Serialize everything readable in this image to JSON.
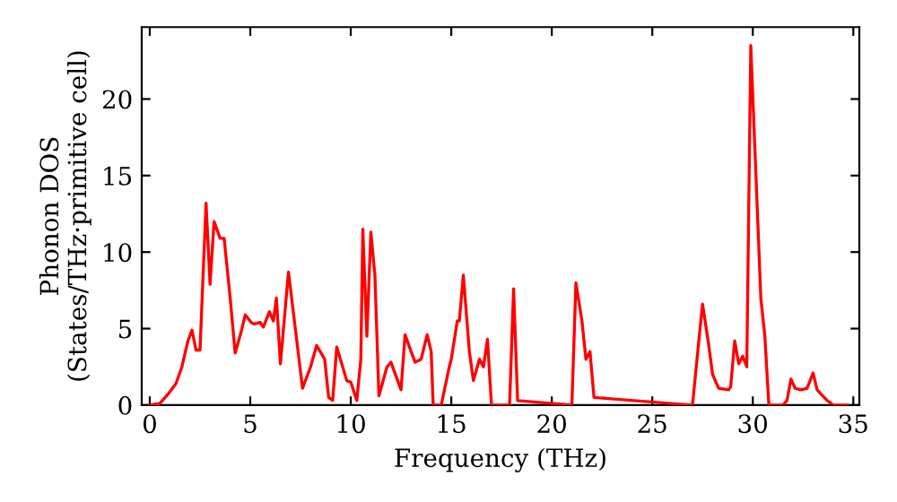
{
  "chart_data": {
    "type": "line",
    "xlabel": "Frequency (THz)",
    "ylabel": "Phonon DOS\n(States/THz·primitive cell)",
    "xlim": [
      -0.4,
      35.3
    ],
    "ylim": [
      0,
      24.7
    ],
    "xticks": [
      0,
      5,
      10,
      15,
      20,
      25,
      30,
      35
    ],
    "yticks": [
      0,
      5,
      10,
      15,
      20
    ],
    "grid": false,
    "marker": "none",
    "line_style": "solid",
    "series": [
      {
        "color": "#ff0000",
        "x": [
          0,
          0.5,
          0.9,
          1.3,
          1.6,
          1.9,
          2.1,
          2.3,
          2.5,
          2.8,
          3.0,
          3.2,
          3.5,
          3.7,
          4.0,
          4.25,
          4.55,
          4.75,
          5.05,
          5.2,
          5.5,
          5.65,
          5.95,
          6.15,
          6.3,
          6.5,
          6.9,
          7.6,
          8.0,
          8.3,
          8.7,
          8.9,
          9.1,
          9.3,
          9.8,
          10.0,
          10.3,
          10.5,
          10.6,
          10.8,
          11.0,
          11.2,
          11.4,
          11.8,
          12.0,
          12.5,
          12.7,
          13.0,
          13.2,
          13.5,
          13.8,
          14.0,
          14.1,
          14.5,
          14.9,
          15.0,
          15.3,
          15.4,
          15.6,
          15.9,
          16.1,
          16.4,
          16.6,
          16.8,
          17.0,
          17.9,
          18.1,
          18.3,
          21.0,
          21.2,
          21.5,
          21.7,
          21.9,
          22.1,
          27.0,
          27.3,
          27.5,
          27.8,
          28.0,
          28.3,
          28.8,
          28.9,
          29.1,
          29.3,
          29.5,
          29.7,
          29.9,
          30.4,
          30.6,
          30.8,
          31.5,
          31.7,
          31.9,
          32.1,
          32.4,
          32.7,
          33.0,
          33.2,
          33.7,
          34.0,
          34.7
        ],
        "values": [
          0,
          0.1,
          0.7,
          1.4,
          2.5,
          4.2,
          4.9,
          3.6,
          3.6,
          13.2,
          7.9,
          12.0,
          10.9,
          10.9,
          7.0,
          3.4,
          4.8,
          5.9,
          5.4,
          5.3,
          5.4,
          5.1,
          6.1,
          5.5,
          7.0,
          2.7,
          8.7,
          1.1,
          2.5,
          3.9,
          3.0,
          0.5,
          0.3,
          3.8,
          1.6,
          1.5,
          0.3,
          3.0,
          11.5,
          4.5,
          11.3,
          8.5,
          0.6,
          2.5,
          2.8,
          1.0,
          4.6,
          3.5,
          2.8,
          3.0,
          4.6,
          3.5,
          0,
          0,
          2.5,
          3.0,
          5.5,
          5.5,
          8.5,
          3.5,
          1.6,
          3.0,
          2.5,
          4.3,
          0,
          0,
          7.6,
          0.3,
          0,
          8.0,
          5.5,
          3.0,
          3.5,
          0.5,
          0,
          4.0,
          6.6,
          4.0,
          2.0,
          1.1,
          1.0,
          1.2,
          4.2,
          2.7,
          3.2,
          2.5,
          23.5,
          7.0,
          4.5,
          0,
          0,
          0.3,
          1.7,
          1.1,
          1.0,
          1.1,
          2.1,
          1.0,
          0.3,
          0,
          0
        ]
      }
    ]
  }
}
